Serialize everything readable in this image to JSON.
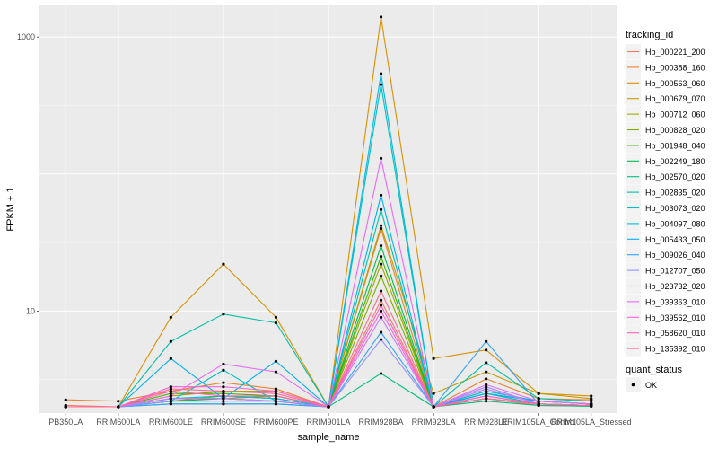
{
  "chart_data": {
    "type": "line",
    "xlabel": "sample_name",
    "ylabel": "FPKM + 1",
    "y_scale": "log10",
    "ylim": [
      1.8,
      1700
    ],
    "grid": true,
    "panel_background": "#ebebeb",
    "legend_position": "right",
    "categories": [
      "PB350LA",
      "RRIM600LA",
      "RRIM600LE",
      "RRIM600SE",
      "RRIM600PE",
      "RRIM901LA",
      "RRIM928BA",
      "RRIM928LA",
      "RRIM928LE",
      "RRIM105LA_Control",
      "RRIM105LA_Stressed"
    ],
    "y_ticks": [
      10,
      1000
    ],
    "y_tick_labels": [
      "10",
      "1000"
    ],
    "legend_title": "tracking_id",
    "series": [
      {
        "name": "Hb_000221_200",
        "color": "#F8766D",
        "values": [
          2.05,
          2.0,
          2.3,
          2.3,
          2.2,
          2.0,
          12.0,
          2.0,
          2.3,
          2.05,
          2.02
        ]
      },
      {
        "name": "Hb_000388_160",
        "color": "#EA8331",
        "values": [
          2.25,
          2.2,
          2.6,
          3.0,
          2.7,
          2.0,
          40.0,
          2.0,
          3.2,
          2.3,
          2.25
        ]
      },
      {
        "name": "Hb_000563_060",
        "color": "#D89000",
        "values": [
          2.0,
          2.0,
          9.0,
          22.0,
          9.0,
          2.0,
          1400.0,
          4.5,
          5.2,
          2.5,
          2.4
        ]
      },
      {
        "name": "Hb_000679_070",
        "color": "#C09B00",
        "values": [
          2.0,
          2.0,
          2.4,
          2.6,
          2.6,
          2.0,
          42.0,
          2.5,
          3.6,
          2.5,
          2.3
        ]
      },
      {
        "name": "Hb_000712_060",
        "color": "#A3A500",
        "values": [
          2.0,
          2.0,
          2.2,
          2.4,
          2.3,
          2.0,
          22.0,
          2.0,
          2.6,
          2.2,
          2.1
        ]
      },
      {
        "name": "Hb_000828_020",
        "color": "#7CAE00",
        "values": [
          2.0,
          2.0,
          2.3,
          2.3,
          2.4,
          2.0,
          18.0,
          2.0,
          2.4,
          2.1,
          2.05
        ]
      },
      {
        "name": "Hb_001948_040",
        "color": "#39B600",
        "values": [
          2.0,
          2.0,
          2.5,
          2.5,
          2.4,
          2.0,
          25.0,
          2.0,
          2.5,
          2.2,
          2.1
        ]
      },
      {
        "name": "Hb_002249_180",
        "color": "#00BB4E",
        "values": [
          2.0,
          2.0,
          2.2,
          2.3,
          2.2,
          2.0,
          30.0,
          2.0,
          2.3,
          2.1,
          2.05
        ]
      },
      {
        "name": "Hb_002570_020",
        "color": "#00BF7D",
        "values": [
          2.0,
          2.0,
          2.1,
          2.1,
          2.1,
          2.0,
          3.5,
          2.0,
          2.2,
          2.05,
          2.02
        ]
      },
      {
        "name": "Hb_002835_020",
        "color": "#00C1A3",
        "values": [
          2.0,
          2.0,
          6.0,
          9.5,
          8.2,
          2.0,
          55.0,
          2.0,
          4.2,
          2.3,
          2.2
        ]
      },
      {
        "name": "Hb_003073_020",
        "color": "#00BFC4",
        "values": [
          2.0,
          2.0,
          2.2,
          3.7,
          2.2,
          2.0,
          450.0,
          2.0,
          2.5,
          2.1,
          2.05
        ]
      },
      {
        "name": "Hb_004097_080",
        "color": "#00BAE0",
        "values": [
          2.0,
          2.0,
          2.3,
          2.4,
          2.3,
          2.0,
          540.0,
          2.0,
          2.6,
          2.2,
          2.1
        ]
      },
      {
        "name": "Hb_005433_050",
        "color": "#00B0F6",
        "values": [
          2.0,
          2.0,
          4.5,
          2.3,
          4.3,
          2.0,
          70.0,
          2.0,
          2.5,
          2.2,
          2.1
        ]
      },
      {
        "name": "Hb_009026_040",
        "color": "#35A2FF",
        "values": [
          2.0,
          2.0,
          2.1,
          2.1,
          2.1,
          2.0,
          7.0,
          2.0,
          6.0,
          2.1,
          2.05
        ]
      },
      {
        "name": "Hb_012707_050",
        "color": "#9590FF",
        "values": [
          2.0,
          2.0,
          2.2,
          2.2,
          2.2,
          2.0,
          6.2,
          2.0,
          2.8,
          2.1,
          2.05
        ]
      },
      {
        "name": "Hb_023732_020",
        "color": "#C77CFF",
        "values": [
          2.0,
          2.0,
          2.3,
          2.3,
          2.2,
          2.0,
          9.0,
          2.0,
          2.7,
          2.1,
          2.05
        ]
      },
      {
        "name": "Hb_039363_010",
        "color": "#E76BF3",
        "values": [
          2.0,
          2.0,
          2.4,
          4.1,
          3.6,
          2.0,
          130.0,
          2.0,
          2.9,
          2.2,
          2.1
        ]
      },
      {
        "name": "Hb_039562_010",
        "color": "#FA62DB",
        "values": [
          2.0,
          2.0,
          2.8,
          2.8,
          2.6,
          2.0,
          10.0,
          2.0,
          2.4,
          2.1,
          2.05
        ]
      },
      {
        "name": "Hb_058620_010",
        "color": "#FF62BC",
        "values": [
          2.0,
          2.0,
          2.6,
          2.4,
          2.4,
          2.0,
          11.0,
          2.0,
          2.3,
          2.1,
          2.05
        ]
      },
      {
        "name": "Hb_135392_010",
        "color": "#FF6C91",
        "values": [
          2.0,
          2.0,
          2.7,
          2.6,
          2.5,
          2.0,
          14.0,
          2.0,
          2.3,
          2.1,
          2.05
        ]
      }
    ],
    "legend2": {
      "title": "quant_status",
      "entries": [
        "OK"
      ]
    }
  }
}
